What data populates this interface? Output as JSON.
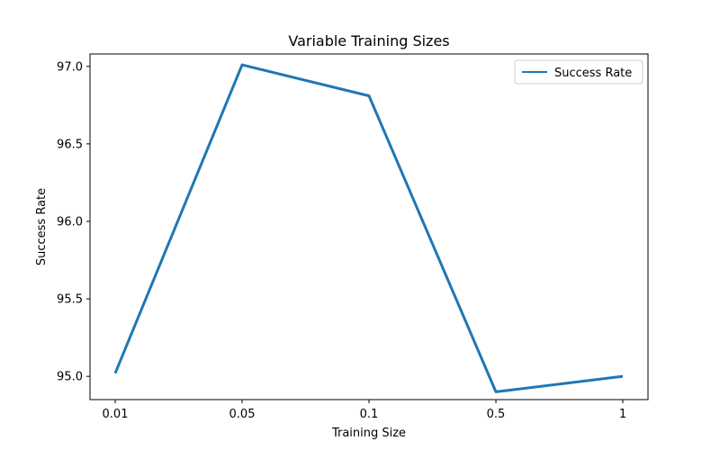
{
  "chart_data": {
    "type": "line",
    "title": "Variable Training Sizes",
    "xlabel": "Training Size",
    "ylabel": "Success Rate",
    "categories": [
      "0.01",
      "0.05",
      "0.1",
      "0.5",
      "1"
    ],
    "series": [
      {
        "name": "Success Rate",
        "values": [
          95.02,
          97.01,
          96.81,
          94.9,
          95.0
        ],
        "color": "#1f77b4"
      }
    ],
    "ylim": [
      94.85,
      97.08
    ],
    "yticks": [
      95.0,
      95.5,
      96.0,
      96.5,
      97.0
    ],
    "ytick_labels": [
      "95.0",
      "95.5",
      "96.0",
      "96.5",
      "97.0"
    ],
    "grid": false,
    "legend_position": "top-right"
  }
}
